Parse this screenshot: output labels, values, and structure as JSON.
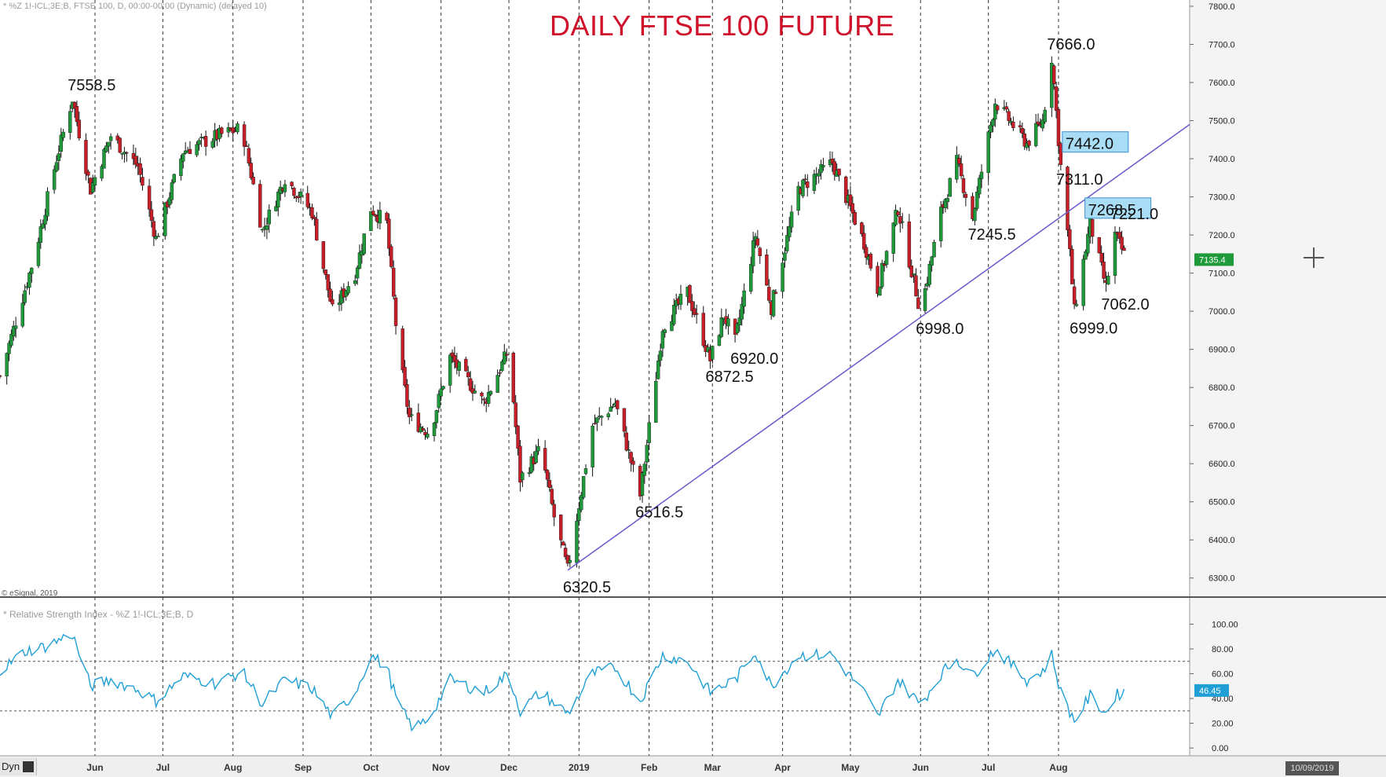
{
  "header": {
    "symbol_line": "* %Z 1!-ICL;3E;B, FTSE 100, D, 00:00-00:00 (Dynamic) (delayed 10)",
    "rsi_line": "* Relative Strength Index - %Z 1!-ICL;3E;B, D",
    "copyright": "© eSignal, 2019",
    "dyn_label": "Dyn",
    "date_box": "10/09/2019"
  },
  "chart_data": [
    {
      "type": "candlestick",
      "title": "DAILY FTSE 100 FUTURE",
      "xlabel": "",
      "ylabel": "",
      "ylim": [
        6250,
        7800
      ],
      "y_ticks": [
        "7800.0",
        "7700.0",
        "7600.0",
        "7500.0",
        "7400.0",
        "7300.0",
        "7200.0",
        "7100.0",
        "7000.0",
        "6900.0",
        "6800.0",
        "6700.0",
        "6600.0",
        "6500.0",
        "6400.0",
        "6300.0"
      ],
      "x_ticks": [
        "Jun",
        "Jul",
        "Aug",
        "Sep",
        "Oct",
        "Nov",
        "Dec",
        "2019",
        "Feb",
        "Mar",
        "Apr",
        "May",
        "Jun",
        "Jul",
        "Aug"
      ],
      "x_tick_dates": [
        "2018-06-01",
        "2018-07-01",
        "2018-08-01",
        "2018-09-01",
        "2018-10-01",
        "2018-11-01",
        "2018-12-01",
        "2019-01-01",
        "2019-02-01",
        "2019-03-01",
        "2019-04-01",
        "2019-05-01",
        "2019-06-01",
        "2019-07-01",
        "2019-08-01"
      ],
      "x_range": [
        "2018-04-20",
        "2019-09-28"
      ],
      "grid": "vertical dashed lines at month starts",
      "colors": {
        "up": "#1f9a3a",
        "down": "#c81e28",
        "trendline": "#6a5acd",
        "title": "#d0112b",
        "rsi": "#1f9fd6",
        "last_price_tag": "#1f9a3a"
      },
      "last_price": "7135.4",
      "price_path": [
        {
          "date": "2018-04-20",
          "price": 6830
        },
        {
          "date": "2018-05-05",
          "price": 7140
        },
        {
          "date": "2018-05-15",
          "price": 7400
        },
        {
          "date": "2018-05-22",
          "price": 7558.5
        },
        {
          "date": "2018-05-30",
          "price": 7320
        },
        {
          "date": "2018-06-08",
          "price": 7460
        },
        {
          "date": "2018-06-20",
          "price": 7380
        },
        {
          "date": "2018-06-28",
          "price": 7190
        },
        {
          "date": "2018-07-10",
          "price": 7420
        },
        {
          "date": "2018-07-25",
          "price": 7460
        },
        {
          "date": "2018-08-05",
          "price": 7480
        },
        {
          "date": "2018-08-14",
          "price": 7210
        },
        {
          "date": "2018-08-24",
          "price": 7350
        },
        {
          "date": "2018-09-05",
          "price": 7260
        },
        {
          "date": "2018-09-14",
          "price": 7000
        },
        {
          "date": "2018-09-24",
          "price": 7100
        },
        {
          "date": "2018-10-01",
          "price": 7270
        },
        {
          "date": "2018-10-08",
          "price": 7230
        },
        {
          "date": "2018-10-13",
          "price": 6900
        },
        {
          "date": "2018-10-18",
          "price": 6720
        },
        {
          "date": "2018-10-27",
          "price": 6680
        },
        {
          "date": "2018-11-05",
          "price": 6880
        },
        {
          "date": "2018-11-20",
          "price": 6760
        },
        {
          "date": "2018-12-01",
          "price": 6900
        },
        {
          "date": "2018-12-06",
          "price": 6560
        },
        {
          "date": "2018-12-15",
          "price": 6640
        },
        {
          "date": "2018-12-21",
          "price": 6460
        },
        {
          "date": "2018-12-27",
          "price": 6320.5
        },
        {
          "date": "2019-01-07",
          "price": 6700
        },
        {
          "date": "2019-01-17",
          "price": 6760
        },
        {
          "date": "2019-01-28",
          "price": 6516.5
        },
        {
          "date": "2019-02-07",
          "price": 6960
        },
        {
          "date": "2019-02-18",
          "price": 7050
        },
        {
          "date": "2019-02-28",
          "price": 6872.5
        },
        {
          "date": "2019-03-06",
          "price": 6990
        },
        {
          "date": "2019-03-11",
          "price": 6920
        },
        {
          "date": "2019-03-20",
          "price": 7200
        },
        {
          "date": "2019-03-27",
          "price": 7010
        },
        {
          "date": "2019-04-08",
          "price": 7320
        },
        {
          "date": "2019-04-23",
          "price": 7390
        },
        {
          "date": "2019-05-07",
          "price": 7180
        },
        {
          "date": "2019-05-13",
          "price": 7060
        },
        {
          "date": "2019-05-22",
          "price": 7270
        },
        {
          "date": "2019-06-01",
          "price": 6998
        },
        {
          "date": "2019-06-10",
          "price": 7260
        },
        {
          "date": "2019-06-17",
          "price": 7390
        },
        {
          "date": "2019-06-24",
          "price": 7245.5
        },
        {
          "date": "2019-07-04",
          "price": 7550
        },
        {
          "date": "2019-07-18",
          "price": 7440
        },
        {
          "date": "2019-07-25",
          "price": 7500
        },
        {
          "date": "2019-07-29",
          "price": 7666
        },
        {
          "date": "2019-08-02",
          "price": 7380
        },
        {
          "date": "2019-08-06",
          "price": 7150
        },
        {
          "date": "2019-08-08",
          "price": 6999
        },
        {
          "date": "2019-08-15",
          "price": 7230
        },
        {
          "date": "2019-08-22",
          "price": 7062
        },
        {
          "date": "2019-08-26",
          "price": 7200
        },
        {
          "date": "2019-08-31",
          "price": 7135.4
        }
      ],
      "trendline": {
        "from": {
          "date": "2018-12-27",
          "price": 6320.5
        },
        "to": {
          "date": "2019-09-28",
          "price": 7490
        }
      },
      "annotations": [
        {
          "label": "7558.5",
          "date": "2018-05-22",
          "price": 7558.5,
          "placement": "above"
        },
        {
          "label": "7666.0",
          "date": "2019-07-29",
          "price": 7666,
          "placement": "above"
        },
        {
          "label": "7442.0",
          "date": "2019-08-02",
          "price": 7442,
          "placement": "boxed"
        },
        {
          "label": "7311.0",
          "date": "2019-08-02",
          "price": 7311,
          "placement": "above"
        },
        {
          "label": "7268.5",
          "date": "2019-08-12",
          "price": 7268.5,
          "placement": "boxed"
        },
        {
          "label": "7221.0",
          "date": "2019-08-26",
          "price": 7221,
          "placement": "above"
        },
        {
          "label": "7245.5",
          "date": "2019-06-24",
          "price": 7245.5,
          "placement": "below"
        },
        {
          "label": "7062.0",
          "date": "2019-08-22",
          "price": 7062,
          "placement": "below"
        },
        {
          "label": "6999.0",
          "date": "2019-08-08",
          "price": 6999,
          "placement": "below"
        },
        {
          "label": "6998.0",
          "date": "2019-06-01",
          "price": 6998,
          "placement": "below"
        },
        {
          "label": "6920.0",
          "date": "2019-03-11",
          "price": 6920,
          "placement": "below"
        },
        {
          "label": "6872.5",
          "date": "2019-02-28",
          "price": 6872.5,
          "placement": "below"
        },
        {
          "label": "6516.5",
          "date": "2019-01-28",
          "price": 6516.5,
          "placement": "below"
        },
        {
          "label": "6320.5",
          "date": "2018-12-27",
          "price": 6320.5,
          "placement": "below"
        }
      ]
    },
    {
      "type": "line",
      "title": "Relative Strength Index",
      "ylim": [
        -5,
        106
      ],
      "y_ticks": [
        "100.00",
        "80.00",
        "60.00",
        "40.00",
        "20.00",
        "0.00"
      ],
      "reference_levels": [
        70,
        30
      ],
      "last_value": "46.45",
      "path": [
        {
          "date": "2018-04-20",
          "value": 62
        },
        {
          "date": "2018-05-01",
          "value": 78
        },
        {
          "date": "2018-05-10",
          "value": 82
        },
        {
          "date": "2018-05-22",
          "value": 92
        },
        {
          "date": "2018-05-30",
          "value": 50
        },
        {
          "date": "2018-06-08",
          "value": 55
        },
        {
          "date": "2018-06-20",
          "value": 47
        },
        {
          "date": "2018-06-28",
          "value": 38
        },
        {
          "date": "2018-07-10",
          "value": 58
        },
        {
          "date": "2018-07-25",
          "value": 52
        },
        {
          "date": "2018-08-05",
          "value": 62
        },
        {
          "date": "2018-08-14",
          "value": 36
        },
        {
          "date": "2018-08-24",
          "value": 55
        },
        {
          "date": "2018-09-05",
          "value": 48
        },
        {
          "date": "2018-09-14",
          "value": 25
        },
        {
          "date": "2018-09-24",
          "value": 45
        },
        {
          "date": "2018-10-01",
          "value": 75
        },
        {
          "date": "2018-10-08",
          "value": 65
        },
        {
          "date": "2018-10-13",
          "value": 35
        },
        {
          "date": "2018-10-20",
          "value": 15
        },
        {
          "date": "2018-10-27",
          "value": 25
        },
        {
          "date": "2018-11-05",
          "value": 55
        },
        {
          "date": "2018-11-20",
          "value": 45
        },
        {
          "date": "2018-12-01",
          "value": 60
        },
        {
          "date": "2018-12-06",
          "value": 30
        },
        {
          "date": "2018-12-15",
          "value": 45
        },
        {
          "date": "2018-12-27",
          "value": 28
        },
        {
          "date": "2019-01-07",
          "value": 60
        },
        {
          "date": "2019-01-17",
          "value": 65
        },
        {
          "date": "2019-01-28",
          "value": 38
        },
        {
          "date": "2019-02-07",
          "value": 75
        },
        {
          "date": "2019-02-18",
          "value": 70
        },
        {
          "date": "2019-02-28",
          "value": 45
        },
        {
          "date": "2019-03-11",
          "value": 55
        },
        {
          "date": "2019-03-20",
          "value": 78
        },
        {
          "date": "2019-03-27",
          "value": 50
        },
        {
          "date": "2019-04-08",
          "value": 75
        },
        {
          "date": "2019-04-23",
          "value": 75
        },
        {
          "date": "2019-05-07",
          "value": 45
        },
        {
          "date": "2019-05-13",
          "value": 25
        },
        {
          "date": "2019-05-22",
          "value": 55
        },
        {
          "date": "2019-06-01",
          "value": 35
        },
        {
          "date": "2019-06-10",
          "value": 60
        },
        {
          "date": "2019-06-17",
          "value": 72
        },
        {
          "date": "2019-06-24",
          "value": 58
        },
        {
          "date": "2019-07-04",
          "value": 80
        },
        {
          "date": "2019-07-18",
          "value": 55
        },
        {
          "date": "2019-07-25",
          "value": 62
        },
        {
          "date": "2019-07-29",
          "value": 75
        },
        {
          "date": "2019-08-02",
          "value": 45
        },
        {
          "date": "2019-08-08",
          "value": 22
        },
        {
          "date": "2019-08-15",
          "value": 42
        },
        {
          "date": "2019-08-22",
          "value": 28
        },
        {
          "date": "2019-08-26",
          "value": 42
        },
        {
          "date": "2019-08-31",
          "value": 46.45
        }
      ]
    }
  ]
}
